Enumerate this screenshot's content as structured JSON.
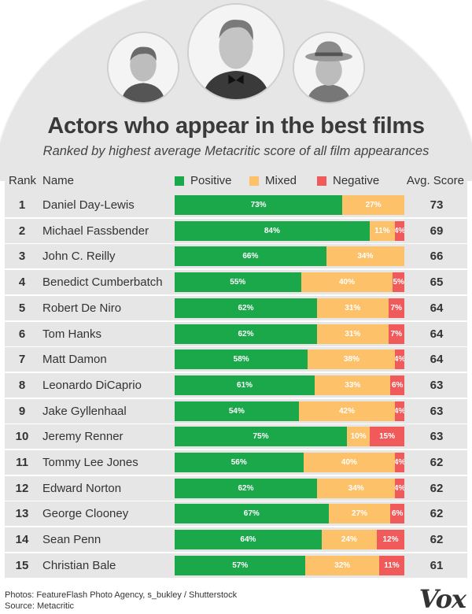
{
  "title": "Actors who appear in the best films",
  "subtitle": "Ranked by highest average Metacritic score of all film appearances",
  "header": {
    "rank": "Rank",
    "name": "Name",
    "score": "Avg. Score"
  },
  "colors": {
    "positive": "#1aa84b",
    "mixed": "#fdc169",
    "negative": "#f15a5a",
    "panel": "#e6e6e6"
  },
  "footer": {
    "credit": "Photos: FeatureFlash Photo Agency, s_bukley / Shutterstock",
    "source": "Source: Metacritic",
    "logo": "Vox"
  },
  "chart_data": {
    "type": "bar",
    "stacked": true,
    "orientation": "horizontal",
    "legend": "top",
    "series": [
      {
        "name": "Positive",
        "values": [
          73,
          84,
          66,
          55,
          62,
          62,
          58,
          61,
          54,
          75,
          56,
          62,
          67,
          64,
          57
        ]
      },
      {
        "name": "Mixed",
        "values": [
          27,
          11,
          34,
          40,
          31,
          31,
          38,
          33,
          42,
          10,
          40,
          34,
          27,
          24,
          32
        ]
      },
      {
        "name": "Negative",
        "values": [
          0,
          4,
          0,
          5,
          7,
          7,
          4,
          6,
          4,
          15,
          4,
          4,
          6,
          12,
          11
        ]
      }
    ],
    "rows": [
      {
        "rank": "1",
        "name": "Daniel Day-Lewis",
        "score": "73"
      },
      {
        "rank": "2",
        "name": "Michael Fassbender",
        "score": "69"
      },
      {
        "rank": "3",
        "name": "John C. Reilly",
        "score": "66"
      },
      {
        "rank": "4",
        "name": "Benedict Cumberbatch",
        "score": "65"
      },
      {
        "rank": "5",
        "name": "Robert De Niro",
        "score": "64"
      },
      {
        "rank": "6",
        "name": "Tom Hanks",
        "score": "64"
      },
      {
        "rank": "7",
        "name": "Matt Damon",
        "score": "64"
      },
      {
        "rank": "8",
        "name": "Leonardo DiCaprio",
        "score": "63"
      },
      {
        "rank": "9",
        "name": "Jake Gyllenhaal",
        "score": "63"
      },
      {
        "rank": "10",
        "name": "Jeremy Renner",
        "score": "63"
      },
      {
        "rank": "11",
        "name": "Tommy Lee Jones",
        "score": "62"
      },
      {
        "rank": "12",
        "name": "Edward Norton",
        "score": "62"
      },
      {
        "rank": "13",
        "name": "George Clooney",
        "score": "62"
      },
      {
        "rank": "14",
        "name": "Sean Penn",
        "score": "62"
      },
      {
        "rank": "15",
        "name": "Christian Bale",
        "score": "61"
      }
    ]
  }
}
